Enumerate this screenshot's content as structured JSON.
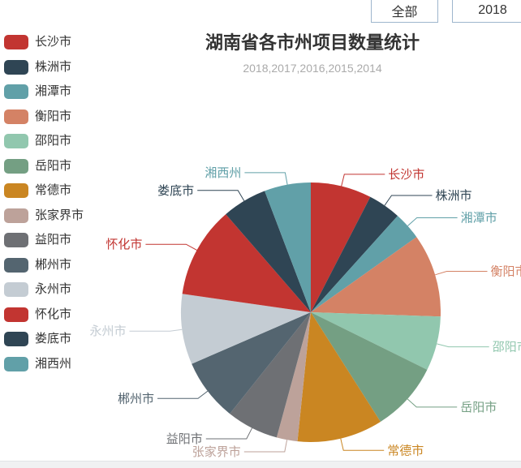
{
  "toolbar": {
    "all_button": "全部",
    "year_button": "2018"
  },
  "chart_data": {
    "type": "pie",
    "title": "湖南省各市州项目数量统计",
    "subtitle": "2018,2017,2016,2015,2014",
    "legend_position": "left",
    "start_angle_deg": 90,
    "direction": "clockwise",
    "values_are": "estimated percent of total, read from slice angles",
    "series": [
      {
        "name": "长沙市",
        "value_pct_est": 7.6,
        "color": "#c23531"
      },
      {
        "name": "株洲市",
        "value_pct_est": 4.1,
        "color": "#2f4554"
      },
      {
        "name": "湘潭市",
        "value_pct_est": 3.5,
        "color": "#61a0a8"
      },
      {
        "name": "衡阳市",
        "value_pct_est": 10.4,
        "color": "#d48265"
      },
      {
        "name": "邵阳市",
        "value_pct_est": 6.8,
        "color": "#91c7ae"
      },
      {
        "name": "岳阳市",
        "value_pct_est": 8.7,
        "color": "#749f83"
      },
      {
        "name": "常德市",
        "value_pct_est": 10.7,
        "color": "#ca8622"
      },
      {
        "name": "张家界市",
        "value_pct_est": 2.6,
        "color": "#bda29a"
      },
      {
        "name": "益阳市",
        "value_pct_est": 6.5,
        "color": "#6e7074"
      },
      {
        "name": "郴州市",
        "value_pct_est": 7.8,
        "color": "#546570"
      },
      {
        "name": "永州市",
        "value_pct_est": 8.8,
        "color": "#c4ccd3"
      },
      {
        "name": "怀化市",
        "value_pct_est": 11.4,
        "color": "#c23531"
      },
      {
        "name": "娄底市",
        "value_pct_est": 5.6,
        "color": "#2f4554"
      },
      {
        "name": "湘西州",
        "value_pct_est": 5.8,
        "color": "#61a0a8"
      }
    ]
  },
  "colors": {
    "title_text": "#333333",
    "subtitle_text": "#aaaaaa",
    "button_border": "#9eb6cd",
    "bottom_bar": "#f0f1f2"
  }
}
